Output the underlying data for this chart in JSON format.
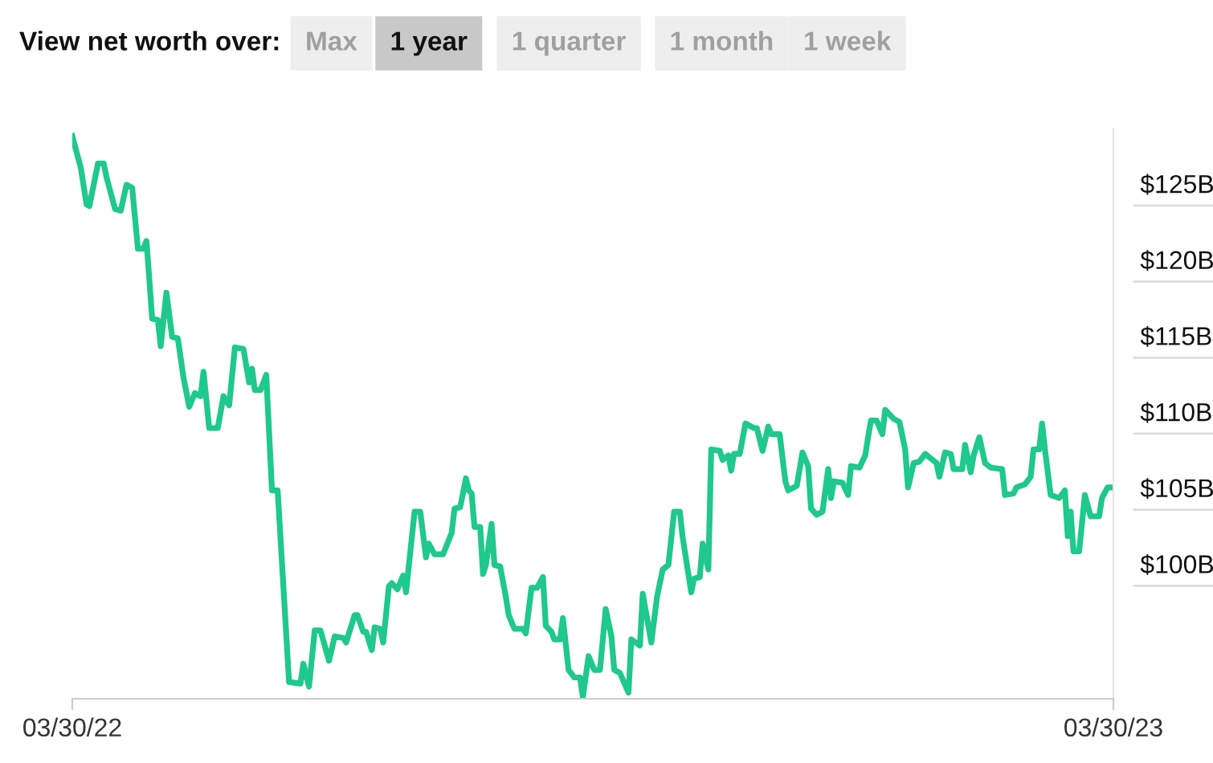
{
  "chart_data": {
    "type": "line",
    "grid": false,
    "legend": false,
    "marker": "none",
    "line_style": "solid",
    "annotations": [
      "View net worth over:",
      "Max",
      "1 year",
      "1 quarter",
      "1 month",
      "1 week"
    ],
    "xlim": [
      "2022-03-30",
      "2023-03-30"
    ],
    "ylim": [
      91.3,
      128.8
    ],
    "xticks": [
      {
        "value": "2022-03-30",
        "label": "03/30/22"
      },
      {
        "value": "2023-03-30",
        "label": "03/30/23"
      }
    ],
    "yticks": [
      {
        "value": 100,
        "label": "$100B"
      },
      {
        "value": 105,
        "label": "$105B"
      },
      {
        "value": 110,
        "label": "$110B"
      },
      {
        "value": 115,
        "label": "$115B"
      },
      {
        "value": 120,
        "label": "$120B"
      },
      {
        "value": 125,
        "label": "$125B"
      }
    ],
    "x": [
      "2022-03-30",
      "2022-04-02",
      "2022-04-04",
      "2022-04-05",
      "2022-04-08",
      "2022-04-10",
      "2022-04-11",
      "2022-04-14",
      "2022-04-16",
      "2022-04-18",
      "2022-04-20",
      "2022-04-22",
      "2022-04-24",
      "2022-04-25",
      "2022-04-26",
      "2022-04-27",
      "2022-04-29",
      "2022-04-30",
      "2022-05-02",
      "2022-05-04",
      "2022-05-06",
      "2022-05-08",
      "2022-05-10",
      "2022-05-12",
      "2022-05-14",
      "2022-05-15",
      "2022-05-17",
      "2022-05-20",
      "2022-05-22",
      "2022-05-24",
      "2022-05-26",
      "2022-05-29",
      "2022-05-31",
      "2022-06-01",
      "2022-06-02",
      "2022-06-04",
      "2022-06-06",
      "2022-06-08",
      "2022-06-10",
      "2022-06-14",
      "2022-06-18",
      "2022-06-19",
      "2022-06-21",
      "2022-06-23",
      "2022-06-25",
      "2022-06-28",
      "2022-06-30",
      "2022-07-03",
      "2022-07-04",
      "2022-07-07",
      "2022-07-08",
      "2022-07-10",
      "2022-07-11",
      "2022-07-13",
      "2022-07-14",
      "2022-07-16",
      "2022-07-17",
      "2022-07-19",
      "2022-07-20",
      "2022-07-22",
      "2022-07-24",
      "2022-07-25",
      "2022-07-28",
      "2022-07-30",
      "2022-08-01",
      "2022-08-02",
      "2022-08-04",
      "2022-08-07",
      "2022-08-10",
      "2022-08-11",
      "2022-08-13",
      "2022-08-15",
      "2022-08-16",
      "2022-08-17",
      "2022-08-18",
      "2022-08-20",
      "2022-08-21",
      "2022-08-22",
      "2022-08-24",
      "2022-08-25",
      "2022-08-27",
      "2022-08-29",
      "2022-08-30",
      "2022-09-01",
      "2022-09-04",
      "2022-09-05",
      "2022-09-07",
      "2022-09-09",
      "2022-09-11",
      "2022-09-12",
      "2022-09-14",
      "2022-09-15",
      "2022-09-17",
      "2022-09-18",
      "2022-09-20",
      "2022-09-22",
      "2022-09-24",
      "2022-09-25",
      "2022-09-27",
      "2022-09-29",
      "2022-10-01",
      "2022-10-03",
      "2022-10-05",
      "2022-10-06",
      "2022-10-08",
      "2022-10-11",
      "2022-10-12",
      "2022-10-15",
      "2022-10-16",
      "2022-10-19",
      "2022-10-21",
      "2022-10-23",
      "2022-10-25",
      "2022-10-27",
      "2022-10-29",
      "2022-10-30",
      "2022-11-02",
      "2022-11-03",
      "2022-11-05",
      "2022-11-06",
      "2022-11-08",
      "2022-11-09",
      "2022-11-12",
      "2022-11-13",
      "2022-11-15",
      "2022-11-16",
      "2022-11-17",
      "2022-11-19",
      "2022-11-21",
      "2022-11-24",
      "2022-11-25",
      "2022-11-27",
      "2022-11-29",
      "2022-11-30",
      "2022-12-03",
      "2022-12-05",
      "2022-12-06",
      "2022-12-09",
      "2022-12-11",
      "2022-12-13",
      "2022-12-14",
      "2022-12-16",
      "2022-12-18",
      "2022-12-20",
      "2022-12-21",
      "2022-12-22",
      "2022-12-25",
      "2022-12-27",
      "2022-12-28",
      "2022-12-31",
      "2023-01-02",
      "2023-01-03",
      "2023-01-04",
      "2023-01-06",
      "2023-01-08",
      "2023-01-09",
      "2023-01-12",
      "2023-01-14",
      "2023-01-16",
      "2023-01-17",
      "2023-01-19",
      "2023-01-21",
      "2023-01-23",
      "2023-01-27",
      "2023-01-28",
      "2023-01-30",
      "2023-02-01",
      "2023-02-02",
      "2023-02-05",
      "2023-02-06",
      "2023-02-08",
      "2023-02-09",
      "2023-02-11",
      "2023-02-13",
      "2023-02-15",
      "2023-02-19",
      "2023-02-20",
      "2023-02-23",
      "2023-02-24",
      "2023-02-27",
      "2023-03-01",
      "2023-03-02",
      "2023-03-04",
      "2023-03-05",
      "2023-03-06",
      "2023-03-08",
      "2023-03-11",
      "2023-03-13",
      "2023-03-14",
      "2023-03-15",
      "2023-03-16",
      "2023-03-18",
      "2023-03-20",
      "2023-03-22",
      "2023-03-25",
      "2023-03-26",
      "2023-03-28",
      "2023-03-29"
    ],
    "series": [
      {
        "color": "#1ec98b",
        "values": [
          128.3,
          126.2,
          123.8,
          123.7,
          126.5,
          126.5,
          125.6,
          123.5,
          123.4,
          125.1,
          124.9,
          120.9,
          120.9,
          121.4,
          118.9,
          116.3,
          116.2,
          114.5,
          118.0,
          115.1,
          115.0,
          112.4,
          110.5,
          111.4,
          111.2,
          112.8,
          109.1,
          109.1,
          111.2,
          110.6,
          114.4,
          114.3,
          112.1,
          113.0,
          111.6,
          111.6,
          112.6,
          105.0,
          105.0,
          92.4,
          92.3,
          93.6,
          92.1,
          95.8,
          95.8,
          93.8,
          95.4,
          95.3,
          95.0,
          96.8,
          96.8,
          95.7,
          95.7,
          94.5,
          96.0,
          95.9,
          95.0,
          98.7,
          98.9,
          98.5,
          99.4,
          98.3,
          103.6,
          103.6,
          100.6,
          101.5,
          100.8,
          100.8,
          102.2,
          103.8,
          103.9,
          105.8,
          105.0,
          104.8,
          102.6,
          102.6,
          99.5,
          100.1,
          102.8,
          100.1,
          100.0,
          98.0,
          96.8,
          95.9,
          95.9,
          95.6,
          98.6,
          98.6,
          99.3,
          96.1,
          95.7,
          95.2,
          95.2,
          96.6,
          93.2,
          92.7,
          92.7,
          91.4,
          94.1,
          93.2,
          93.2,
          97.2,
          95.4,
          93.2,
          93.0,
          91.7,
          95.2,
          94.8,
          98.2,
          95.0,
          98.0,
          99.8,
          100.1,
          103.6,
          103.6,
          101.9,
          98.3,
          99.2,
          99.3,
          101.5,
          99.8,
          107.7,
          107.6,
          107.0,
          107.3,
          106.3,
          107.4,
          107.4,
          109.4,
          109.1,
          109.1,
          107.6,
          109.2,
          108.7,
          108.7,
          105.6,
          105.0,
          105.3,
          107.5,
          106.6,
          103.8,
          103.4,
          103.6,
          106.4,
          104.5,
          105.6,
          105.5,
          104.7,
          106.6,
          106.5,
          107.3,
          108.5,
          109.6,
          109.6,
          108.7,
          110.3,
          109.7,
          109.5,
          107.7,
          105.2,
          106.8,
          106.9,
          107.4,
          106.8,
          105.9,
          107.5,
          107.4,
          106.4,
          106.4,
          108.0,
          106.2,
          107.3,
          108.5,
          106.8,
          106.5,
          106.4,
          104.7,
          104.8,
          105.2,
          105.4,
          105.9,
          107.7,
          107.7,
          109.4,
          107.7,
          104.7,
          104.5,
          105.0,
          102.0,
          103.6,
          101.0,
          101.0,
          104.7,
          103.3,
          103.3,
          104.5,
          105.2,
          105.2
        ]
      }
    ]
  }
}
